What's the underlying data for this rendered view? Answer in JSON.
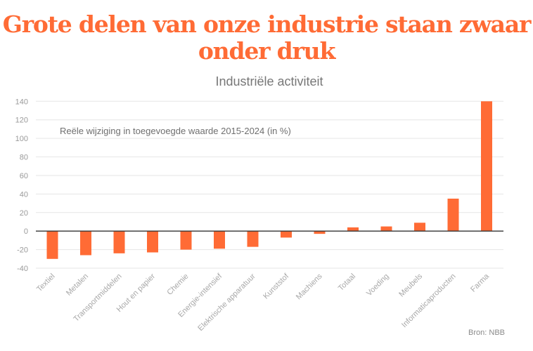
{
  "header": {
    "title_line1": "Grote delen van onze industrie staan zwaar",
    "title_line2": "onder druk"
  },
  "colors": {
    "bar": "#ff6b35",
    "title": "#ff6b35",
    "grid": "#e6e6e6",
    "zero_line": "#333333"
  },
  "chart_data": {
    "type": "bar",
    "title": "Industriële activiteit",
    "annotation": "Reële wijziging in toegevoegde waarde 2015-2024 (in %)",
    "xlabel": "",
    "ylabel": "",
    "ylim": [
      -40,
      140
    ],
    "yticks": [
      140,
      120,
      100,
      80,
      60,
      40,
      20,
      0,
      -20,
      -40
    ],
    "grid": true,
    "categories": [
      "Textiel",
      "Metalen",
      "Transportmiddelen",
      "Hout en papier",
      "Chemie",
      "Energie-intensief",
      "Elektrische apparatuur",
      "Kunststof",
      "Machiens",
      "Totaal",
      "Voeding",
      "Meubels",
      "Informaticaproducten",
      "Farma"
    ],
    "values": [
      -30,
      -26,
      -24,
      -23,
      -20,
      -19,
      -17,
      -7,
      -3,
      4,
      5,
      9,
      35,
      140
    ],
    "source": "Bron: NBB"
  }
}
